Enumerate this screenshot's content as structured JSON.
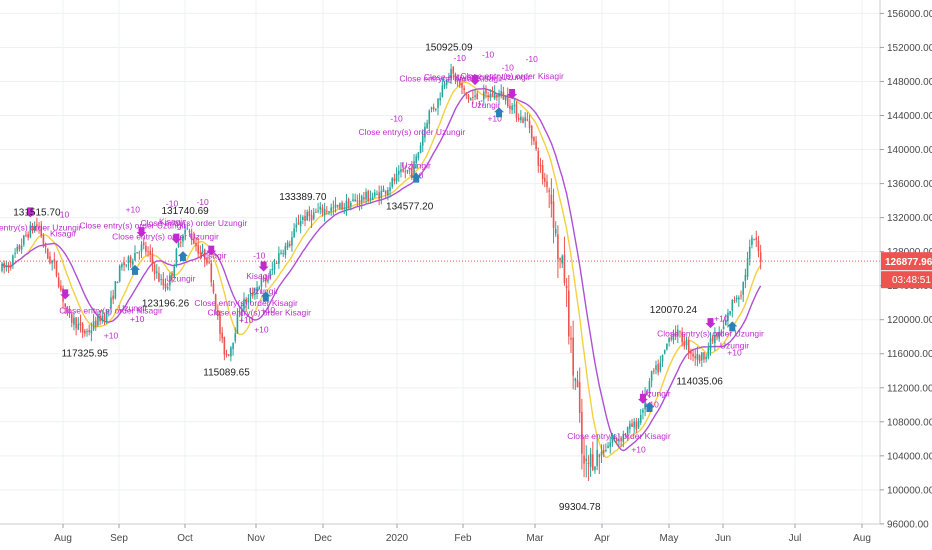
{
  "chart_data": {
    "type": "candlestick",
    "x_axis_labels": [
      "Aug",
      "Sep",
      "Oct",
      "Nov",
      "Dec",
      "2020",
      "Feb",
      "Mar",
      "Apr",
      "May",
      "Jun",
      "Jul",
      "Aug"
    ],
    "y_axis": {
      "min": 94000,
      "max": 158000,
      "ticks": [
        "156000.00",
        "152000.00",
        "148000.00",
        "144000.00",
        "140000.00",
        "136000.00",
        "132000.00",
        "128000.00",
        "124000.00",
        "120000.00",
        "116000.00",
        "112000.00",
        "108000.00",
        "104000.00",
        "100000.00",
        "96000.00"
      ]
    },
    "last_price": "126877.96",
    "countdown": "03:48:51",
    "colors": {
      "up": "#26a69a",
      "down": "#ef5350",
      "fast_ma": "#f4d03f",
      "slow_ma": "#b04fd6",
      "signal": "#c02bd0",
      "price_line": "#ef5350",
      "axis_text": "#4a4a4a",
      "label_bg": "#ef5350"
    },
    "extremes": [
      {
        "text": "131515.70",
        "price": 131515.7,
        "bar": 16,
        "pos": "above"
      },
      {
        "text": "117325.95",
        "price": 117325.95,
        "bar": 38,
        "pos": "below"
      },
      {
        "text": "131740.69",
        "price": 131740.69,
        "bar": 84,
        "pos": "above"
      },
      {
        "text": "123196.26",
        "price": 123196.26,
        "bar": 75,
        "pos": "below"
      },
      {
        "text": "115089.65",
        "price": 115089.65,
        "bar": 103,
        "pos": "below"
      },
      {
        "text": "133389.70",
        "price": 133389.7,
        "bar": 138,
        "pos": "above"
      },
      {
        "text": "134577.20",
        "price": 134577.2,
        "bar": 187,
        "pos": "below"
      },
      {
        "text": "150925.09",
        "price": 150925.09,
        "bar": 205,
        "pos": "above"
      },
      {
        "text": "99304.78",
        "price": 99304.78,
        "bar": 265,
        "pos": "below"
      },
      {
        "text": "120070.24",
        "price": 120070.24,
        "bar": 308,
        "pos": "above"
      },
      {
        "text": "114035.06",
        "price": 114035.06,
        "bar": 320,
        "pos": "below"
      }
    ],
    "signals": [
      {
        "text": "Close entry(s) order Uzungir",
        "bar": 12,
        "price": 130500
      },
      {
        "text": "Kisagir",
        "bar": 28,
        "price": 129800
      },
      {
        "text": "-10",
        "bar": 28,
        "price": 132000
      },
      {
        "text": "Close entry(s) order Kisagir",
        "bar": 50,
        "price": 120700
      },
      {
        "text": "+10",
        "bar": 50,
        "price": 117800
      },
      {
        "text": "Close entry(s) order Uzungir",
        "bar": 60,
        "price": 130700
      },
      {
        "text": "+10",
        "bar": 60,
        "price": 132600
      },
      {
        "text": "Uzungir",
        "bar": 60,
        "price": 121000
      },
      {
        "text": "+10",
        "bar": 62,
        "price": 119700
      },
      {
        "text": "Close entry(s) order Uzungir",
        "bar": 75,
        "price": 129400
      },
      {
        "text": "Kisagir",
        "bar": 78,
        "price": 131200
      },
      {
        "text": "-10",
        "bar": 78,
        "price": 133300
      },
      {
        "text": "Close entry(s) order Uzungir",
        "bar": 88,
        "price": 131000
      },
      {
        "text": "-10",
        "bar": 92,
        "price": 133500
      },
      {
        "text": "Uzungir",
        "bar": 82,
        "price": 124500
      },
      {
        "text": "Kisagir",
        "bar": 97,
        "price": 127200
      },
      {
        "text": "Kisagir",
        "bar": 118,
        "price": 124800
      },
      {
        "text": "-10",
        "bar": 118,
        "price": 127200
      },
      {
        "text": "Close entry(s) order Kisagir",
        "bar": 112,
        "price": 121600
      },
      {
        "text": "Uzungir",
        "bar": 120,
        "price": 123000
      },
      {
        "text": "+10",
        "bar": 122,
        "price": 120800
      },
      {
        "text": "Close entry(s) order Kisagir",
        "bar": 118,
        "price": 120500
      },
      {
        "text": "+10",
        "bar": 112,
        "price": 119600
      },
      {
        "text": "+10",
        "bar": 119,
        "price": 118500
      },
      {
        "text": "Close entry(s) order Uzungir",
        "bar": 188,
        "price": 141700
      },
      {
        "text": "-10",
        "bar": 181,
        "price": 143300
      },
      {
        "text": "Uzungir",
        "bar": 190,
        "price": 137800
      },
      {
        "text": "+10",
        "bar": 190,
        "price": 136600
      },
      {
        "text": "Close entry(s) order Kisagir",
        "bar": 206,
        "price": 148000
      },
      {
        "text": "Close entry(s) order Uzungir",
        "bar": 218,
        "price": 148200
      },
      {
        "text": "Close entry(s) order Kisagir",
        "bar": 234,
        "price": 148300
      },
      {
        "text": "-10",
        "bar": 210,
        "price": 150400
      },
      {
        "text": "-10",
        "bar": 223,
        "price": 150800
      },
      {
        "text": "-10",
        "bar": 243,
        "price": 150300
      },
      {
        "text": "-10",
        "bar": 232,
        "price": 149300
      },
      {
        "text": "+10",
        "bar": 226,
        "price": 143300
      },
      {
        "text": "Uzungir",
        "bar": 222,
        "price": 144900
      },
      {
        "text": "Uzungir",
        "bar": 300,
        "price": 111000
      },
      {
        "text": "+10",
        "bar": 298,
        "price": 109700
      },
      {
        "text": "Close entry(s) order Kisagir",
        "bar": 283,
        "price": 106000
      },
      {
        "text": "+10",
        "bar": 292,
        "price": 104400
      },
      {
        "text": "+10",
        "bar": 330,
        "price": 119800
      },
      {
        "text": "Close entry(s) order Uzungir",
        "bar": 325,
        "price": 118000
      },
      {
        "text": "+10",
        "bar": 336,
        "price": 115800
      },
      {
        "text": "Uzungir",
        "bar": 336,
        "price": 116600
      }
    ],
    "arrows": [
      {
        "bar": 13,
        "dir": "down"
      },
      {
        "bar": 29,
        "dir": "down"
      },
      {
        "bar": 61,
        "dir": "up"
      },
      {
        "bar": 64,
        "dir": "down"
      },
      {
        "bar": 80,
        "dir": "down"
      },
      {
        "bar": 83,
        "dir": "up"
      },
      {
        "bar": 96,
        "dir": "down"
      },
      {
        "bar": 120,
        "dir": "down"
      },
      {
        "bar": 121,
        "dir": "up"
      },
      {
        "bar": 190,
        "dir": "up"
      },
      {
        "bar": 217,
        "dir": "down"
      },
      {
        "bar": 228,
        "dir": "up"
      },
      {
        "bar": 234,
        "dir": "down"
      },
      {
        "bar": 294,
        "dir": "down"
      },
      {
        "bar": 297,
        "dir": "up"
      },
      {
        "bar": 325,
        "dir": "down"
      },
      {
        "bar": 335,
        "dir": "up"
      }
    ],
    "grid": true
  }
}
